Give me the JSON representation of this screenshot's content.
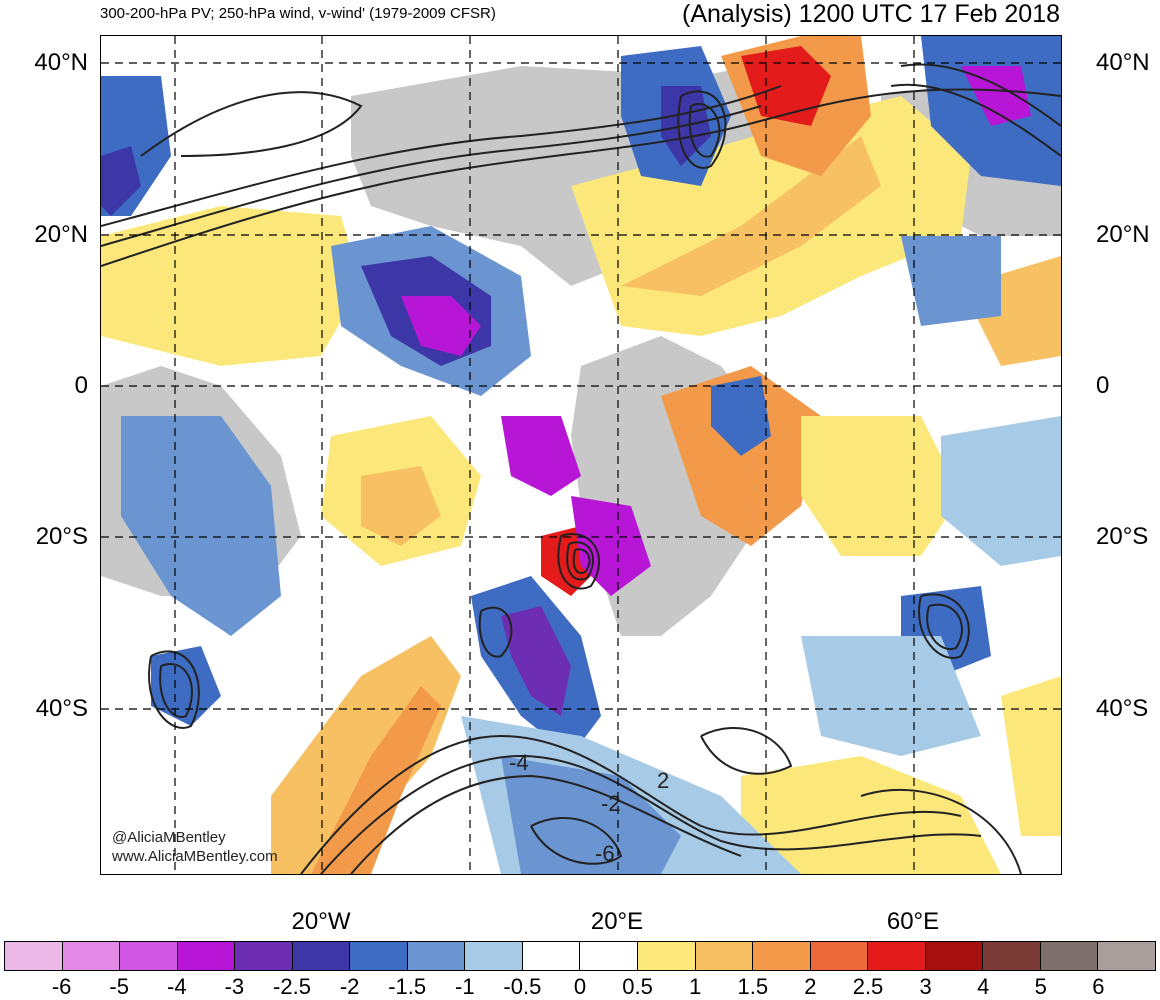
{
  "header": {
    "left_title": "300-200-hPa PV; 250-hPa wind, v-wind' (1979-2009 CFSR)",
    "right_title": "(Analysis) 1200 UTC 17 Feb 2018"
  },
  "axes": {
    "lat_labels": [
      "40°N",
      "20°N",
      "0",
      "20°S",
      "40°S"
    ],
    "lon_labels": [
      "20°W",
      "20°E",
      "60°E"
    ]
  },
  "colorbar": {
    "colors": [
      "#ebb8e8",
      "#e28ae6",
      "#d156e3",
      "#b716d6",
      "#6e2eb4",
      "#3d36a6",
      "#3d6cc2",
      "#6a95d1",
      "#a7cbe6",
      "#ffffff",
      "#ffffff",
      "#fbe77a",
      "#f7c163",
      "#f29a4a",
      "#ee6a3c",
      "#e31b1b",
      "#a50f0f",
      "#7a3b37",
      "#7e6f6c",
      "#a99e9c"
    ],
    "tick_labels": [
      "-6",
      "-5",
      "-4",
      "-3",
      "-2.5",
      "-2",
      "-1.5",
      "-1",
      "-0.5",
      "0",
      "0.5",
      "1",
      "1.5",
      "2",
      "2.5",
      "3",
      "4",
      "5",
      "6"
    ]
  },
  "contour_labels": [
    "-4",
    "2",
    "-2",
    "-6"
  ],
  "credit": {
    "handle": "@AliciaMBentley",
    "site": "www.AliciaMBentley.com"
  }
}
